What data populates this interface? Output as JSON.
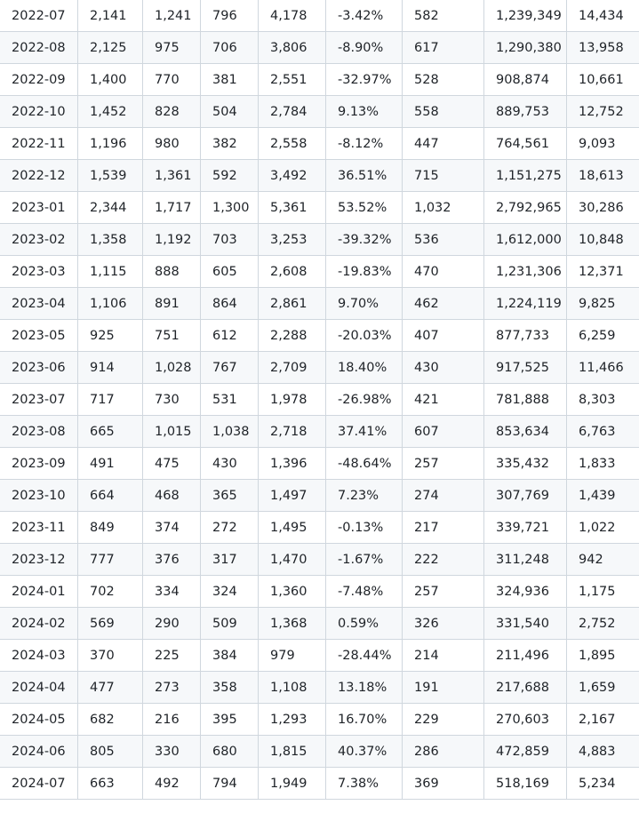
{
  "rows": [
    [
      "2022-07",
      "2,141",
      "1,241",
      "796",
      "4,178",
      "-3.42%",
      "582",
      "1,239,349",
      "14,434"
    ],
    [
      "2022-08",
      "2,125",
      "975",
      "706",
      "3,806",
      "-8.90%",
      "617",
      "1,290,380",
      "13,958"
    ],
    [
      "2022-09",
      "1,400",
      "770",
      "381",
      "2,551",
      "-32.97%",
      "528",
      "908,874",
      "10,661"
    ],
    [
      "2022-10",
      "1,452",
      "828",
      "504",
      "2,784",
      "9.13%",
      "558",
      "889,753",
      "12,752"
    ],
    [
      "2022-11",
      "1,196",
      "980",
      "382",
      "2,558",
      "-8.12%",
      "447",
      "764,561",
      "9,093"
    ],
    [
      "2022-12",
      "1,539",
      "1,361",
      "592",
      "3,492",
      "36.51%",
      "715",
      "1,151,275",
      "18,613"
    ],
    [
      "2023-01",
      "2,344",
      "1,717",
      "1,300",
      "5,361",
      "53.52%",
      "1,032",
      "2,792,965",
      "30,286"
    ],
    [
      "2023-02",
      "1,358",
      "1,192",
      "703",
      "3,253",
      "-39.32%",
      "536",
      "1,612,000",
      "10,848"
    ],
    [
      "2023-03",
      "1,115",
      "888",
      "605",
      "2,608",
      "-19.83%",
      "470",
      "1,231,306",
      "12,371"
    ],
    [
      "2023-04",
      "1,106",
      "891",
      "864",
      "2,861",
      "9.70%",
      "462",
      "1,224,119",
      "9,825"
    ],
    [
      "2023-05",
      "925",
      "751",
      "612",
      "2,288",
      "-20.03%",
      "407",
      "877,733",
      "6,259"
    ],
    [
      "2023-06",
      "914",
      "1,028",
      "767",
      "2,709",
      "18.40%",
      "430",
      "917,525",
      "11,466"
    ],
    [
      "2023-07",
      "717",
      "730",
      "531",
      "1,978",
      "-26.98%",
      "421",
      "781,888",
      "8,303"
    ],
    [
      "2023-08",
      "665",
      "1,015",
      "1,038",
      "2,718",
      "37.41%",
      "607",
      "853,634",
      "6,763"
    ],
    [
      "2023-09",
      "491",
      "475",
      "430",
      "1,396",
      "-48.64%",
      "257",
      "335,432",
      "1,833"
    ],
    [
      "2023-10",
      "664",
      "468",
      "365",
      "1,497",
      "7.23%",
      "274",
      "307,769",
      "1,439"
    ],
    [
      "2023-11",
      "849",
      "374",
      "272",
      "1,495",
      "-0.13%",
      "217",
      "339,721",
      "1,022"
    ],
    [
      "2023-12",
      "777",
      "376",
      "317",
      "1,470",
      "-1.67%",
      "222",
      "311,248",
      "942"
    ],
    [
      "2024-01",
      "702",
      "334",
      "324",
      "1,360",
      "-7.48%",
      "257",
      "324,936",
      "1,175"
    ],
    [
      "2024-02",
      "569",
      "290",
      "509",
      "1,368",
      "0.59%",
      "326",
      "331,540",
      "2,752"
    ],
    [
      "2024-03",
      "370",
      "225",
      "384",
      "979",
      "-28.44%",
      "214",
      "211,496",
      "1,895"
    ],
    [
      "2024-04",
      "477",
      "273",
      "358",
      "1,108",
      "13.18%",
      "191",
      "217,688",
      "1,659"
    ],
    [
      "2024-05",
      "682",
      "216",
      "395",
      "1,293",
      "16.70%",
      "229",
      "270,603",
      "2,167"
    ],
    [
      "2024-06",
      "805",
      "330",
      "680",
      "1,815",
      "40.37%",
      "286",
      "472,859",
      "4,883"
    ],
    [
      "2024-07",
      "663",
      "492",
      "794",
      "1,949",
      "7.38%",
      "369",
      "518,169",
      "5,234"
    ]
  ]
}
